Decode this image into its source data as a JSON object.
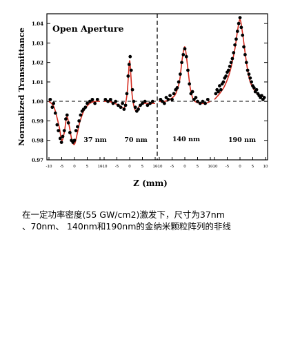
{
  "chart_data": {
    "type": "scatter",
    "title": "Open Aperture",
    "xlabel": "Z (mm)",
    "ylabel": "Normalized Transmittance",
    "ylim": [
      0.97,
      1.045
    ],
    "yticks": [
      "0.97",
      "0.98",
      "0.99",
      "1.00",
      "1.01",
      "1.02",
      "1.03",
      "1.04"
    ],
    "xlim": [
      -10,
      10
    ],
    "xticks": [
      "-10",
      "-5",
      "0",
      "5",
      "10"
    ],
    "panels": [
      {
        "label": "37 nm",
        "fit": [
          [
            -10,
            1.0
          ],
          [
            -8,
            0.997
          ],
          [
            -6,
            0.987
          ],
          [
            -5,
            0.98
          ],
          [
            -4,
            0.984
          ],
          [
            -3,
            0.992
          ],
          [
            -2,
            0.987
          ],
          [
            -1,
            0.98
          ],
          [
            0,
            0.978
          ],
          [
            1,
            0.983
          ],
          [
            2,
            0.989
          ],
          [
            3,
            0.993
          ],
          [
            4,
            0.996
          ],
          [
            6,
            0.999
          ],
          [
            8,
            1.0
          ],
          [
            10,
            1.0
          ]
        ],
        "points": [
          [
            -9.5,
            1.001
          ],
          [
            -8.7,
            0.997
          ],
          [
            -8.2,
            0.999
          ],
          [
            -7.5,
            0.994
          ],
          [
            -6.8,
            0.988
          ],
          [
            -6.3,
            0.985
          ],
          [
            -5.6,
            0.981
          ],
          [
            -5.1,
            0.979
          ],
          [
            -4.6,
            0.982
          ],
          [
            -4.0,
            0.985
          ],
          [
            -3.4,
            0.991
          ],
          [
            -2.9,
            0.993
          ],
          [
            -2.4,
            0.989
          ],
          [
            -1.8,
            0.984
          ],
          [
            -1.2,
            0.98
          ],
          [
            -0.6,
            0.979
          ],
          [
            0.0,
            0.98
          ],
          [
            0.6,
            0.985
          ],
          [
            1.2,
            0.987
          ],
          [
            1.8,
            0.99
          ],
          [
            2.4,
            0.993
          ],
          [
            3.0,
            0.995
          ],
          [
            3.6,
            0.996
          ],
          [
            4.3,
            0.997
          ],
          [
            5.0,
            0.999
          ],
          [
            6.0,
            1.0
          ],
          [
            7.0,
            1.001
          ],
          [
            8.0,
            0.999
          ],
          [
            9.0,
            1.001
          ]
        ]
      },
      {
        "label": "70 nm",
        "fit": [
          [
            -10,
            1.0
          ],
          [
            -8,
            1.0
          ],
          [
            -6,
            0.999
          ],
          [
            -4,
            0.998
          ],
          [
            -3,
            0.997
          ],
          [
            -2,
            0.997
          ],
          [
            -1,
            1.004
          ],
          [
            -0.5,
            1.013
          ],
          [
            0,
            1.021
          ],
          [
            0.5,
            1.013
          ],
          [
            1,
            1.003
          ],
          [
            2,
            0.996
          ],
          [
            3,
            0.996
          ],
          [
            4,
            0.998
          ],
          [
            6,
            0.999
          ],
          [
            8,
            0.999
          ],
          [
            10,
            0.999
          ]
        ],
        "points": [
          [
            -9.5,
            1.001
          ],
          [
            -8.5,
            1.0
          ],
          [
            -7.5,
            1.001
          ],
          [
            -6.5,
            0.999
          ],
          [
            -5.5,
            1.0
          ],
          [
            -4.5,
            0.998
          ],
          [
            -3.5,
            0.997
          ],
          [
            -2.8,
            0.999
          ],
          [
            -2.2,
            0.996
          ],
          [
            -1.6,
            0.998
          ],
          [
            -1.1,
            1.004
          ],
          [
            -0.6,
            1.013
          ],
          [
            -0.2,
            1.019
          ],
          [
            0.2,
            1.023
          ],
          [
            0.6,
            1.016
          ],
          [
            1.1,
            1.006
          ],
          [
            1.6,
            1.0
          ],
          [
            2.2,
            0.997
          ],
          [
            2.8,
            0.995
          ],
          [
            3.4,
            0.996
          ],
          [
            4.2,
            0.998
          ],
          [
            5.0,
            0.999
          ],
          [
            6.0,
            1.0
          ],
          [
            7.0,
            0.998
          ],
          [
            8.0,
            0.999
          ],
          [
            9.0,
            1.0
          ]
        ]
      },
      {
        "label": "140 nm",
        "fit": [
          [
            -10,
            1.0
          ],
          [
            -8,
            1.0
          ],
          [
            -6,
            1.001
          ],
          [
            -4,
            1.003
          ],
          [
            -3,
            1.006
          ],
          [
            -2,
            1.011
          ],
          [
            -1,
            1.022
          ],
          [
            0,
            1.028
          ],
          [
            1,
            1.019
          ],
          [
            2,
            1.008
          ],
          [
            3,
            1.002
          ],
          [
            4,
            1.0
          ],
          [
            6,
            0.999
          ],
          [
            8,
            0.999
          ],
          [
            10,
            1.0
          ]
        ],
        "points": [
          [
            -9.5,
            1.001
          ],
          [
            -8.8,
            1.0
          ],
          [
            -8.0,
            0.999
          ],
          [
            -7.3,
            1.002
          ],
          [
            -6.5,
            1.001
          ],
          [
            -5.8,
            1.003
          ],
          [
            -5.0,
            1.001
          ],
          [
            -4.3,
            1.004
          ],
          [
            -3.6,
            1.006
          ],
          [
            -3.0,
            1.007
          ],
          [
            -2.4,
            1.01
          ],
          [
            -1.8,
            1.014
          ],
          [
            -1.2,
            1.02
          ],
          [
            -0.6,
            1.024
          ],
          [
            0.0,
            1.027
          ],
          [
            0.6,
            1.023
          ],
          [
            1.2,
            1.016
          ],
          [
            1.8,
            1.009
          ],
          [
            2.4,
            1.004
          ],
          [
            3.0,
            1.005
          ],
          [
            3.6,
            1.001
          ],
          [
            4.3,
            1.002
          ],
          [
            5.0,
            1.0
          ],
          [
            6.0,
            0.999
          ],
          [
            7.0,
            1.0
          ],
          [
            8.0,
            0.999
          ],
          [
            9.0,
            1.001
          ]
        ]
      },
      {
        "label": "190 nm",
        "fit": [
          [
            -10,
            1.001
          ],
          [
            -8,
            1.004
          ],
          [
            -6,
            1.008
          ],
          [
            -4,
            1.015
          ],
          [
            -2,
            1.027
          ],
          [
            -1,
            1.036
          ],
          [
            0,
            1.042
          ],
          [
            1,
            1.035
          ],
          [
            2,
            1.025
          ],
          [
            3,
            1.016
          ],
          [
            4,
            1.01
          ],
          [
            6,
            1.005
          ],
          [
            8,
            1.003
          ],
          [
            10,
            1.002
          ]
        ],
        "points": [
          [
            -9.5,
            1.004
          ],
          [
            -9.0,
            1.006
          ],
          [
            -8.5,
            1.005
          ],
          [
            -8.0,
            1.008
          ],
          [
            -7.5,
            1.006
          ],
          [
            -7.0,
            1.009
          ],
          [
            -6.5,
            1.01
          ],
          [
            -6.0,
            1.012
          ],
          [
            -5.5,
            1.013
          ],
          [
            -5.0,
            1.015
          ],
          [
            -4.5,
            1.016
          ],
          [
            -4.0,
            1.018
          ],
          [
            -3.5,
            1.02
          ],
          [
            -3.0,
            1.022
          ],
          [
            -2.5,
            1.025
          ],
          [
            -2.0,
            1.029
          ],
          [
            -1.5,
            1.032
          ],
          [
            -1.0,
            1.036
          ],
          [
            -0.5,
            1.04
          ],
          [
            0.0,
            1.043
          ],
          [
            0.5,
            1.038
          ],
          [
            1.0,
            1.034
          ],
          [
            1.5,
            1.028
          ],
          [
            2.0,
            1.024
          ],
          [
            2.5,
            1.02
          ],
          [
            3.0,
            1.016
          ],
          [
            3.5,
            1.014
          ],
          [
            4.0,
            1.012
          ],
          [
            4.5,
            1.01
          ],
          [
            5.0,
            1.008
          ],
          [
            5.5,
            1.007
          ],
          [
            6.0,
            1.005
          ],
          [
            6.5,
            1.006
          ],
          [
            7.0,
            1.004
          ],
          [
            7.5,
            1.003
          ],
          [
            8.0,
            1.002
          ],
          [
            8.5,
            1.003
          ],
          [
            9.0,
            1.001
          ],
          [
            9.5,
            1.002
          ]
        ]
      }
    ]
  },
  "caption": {
    "line1": "在一定功率密度(55 GW/cm2)激发下，尺寸为37nm",
    "line2": "、70nm、 140nm和190nm的金纳米颗粒阵列的非线"
  }
}
